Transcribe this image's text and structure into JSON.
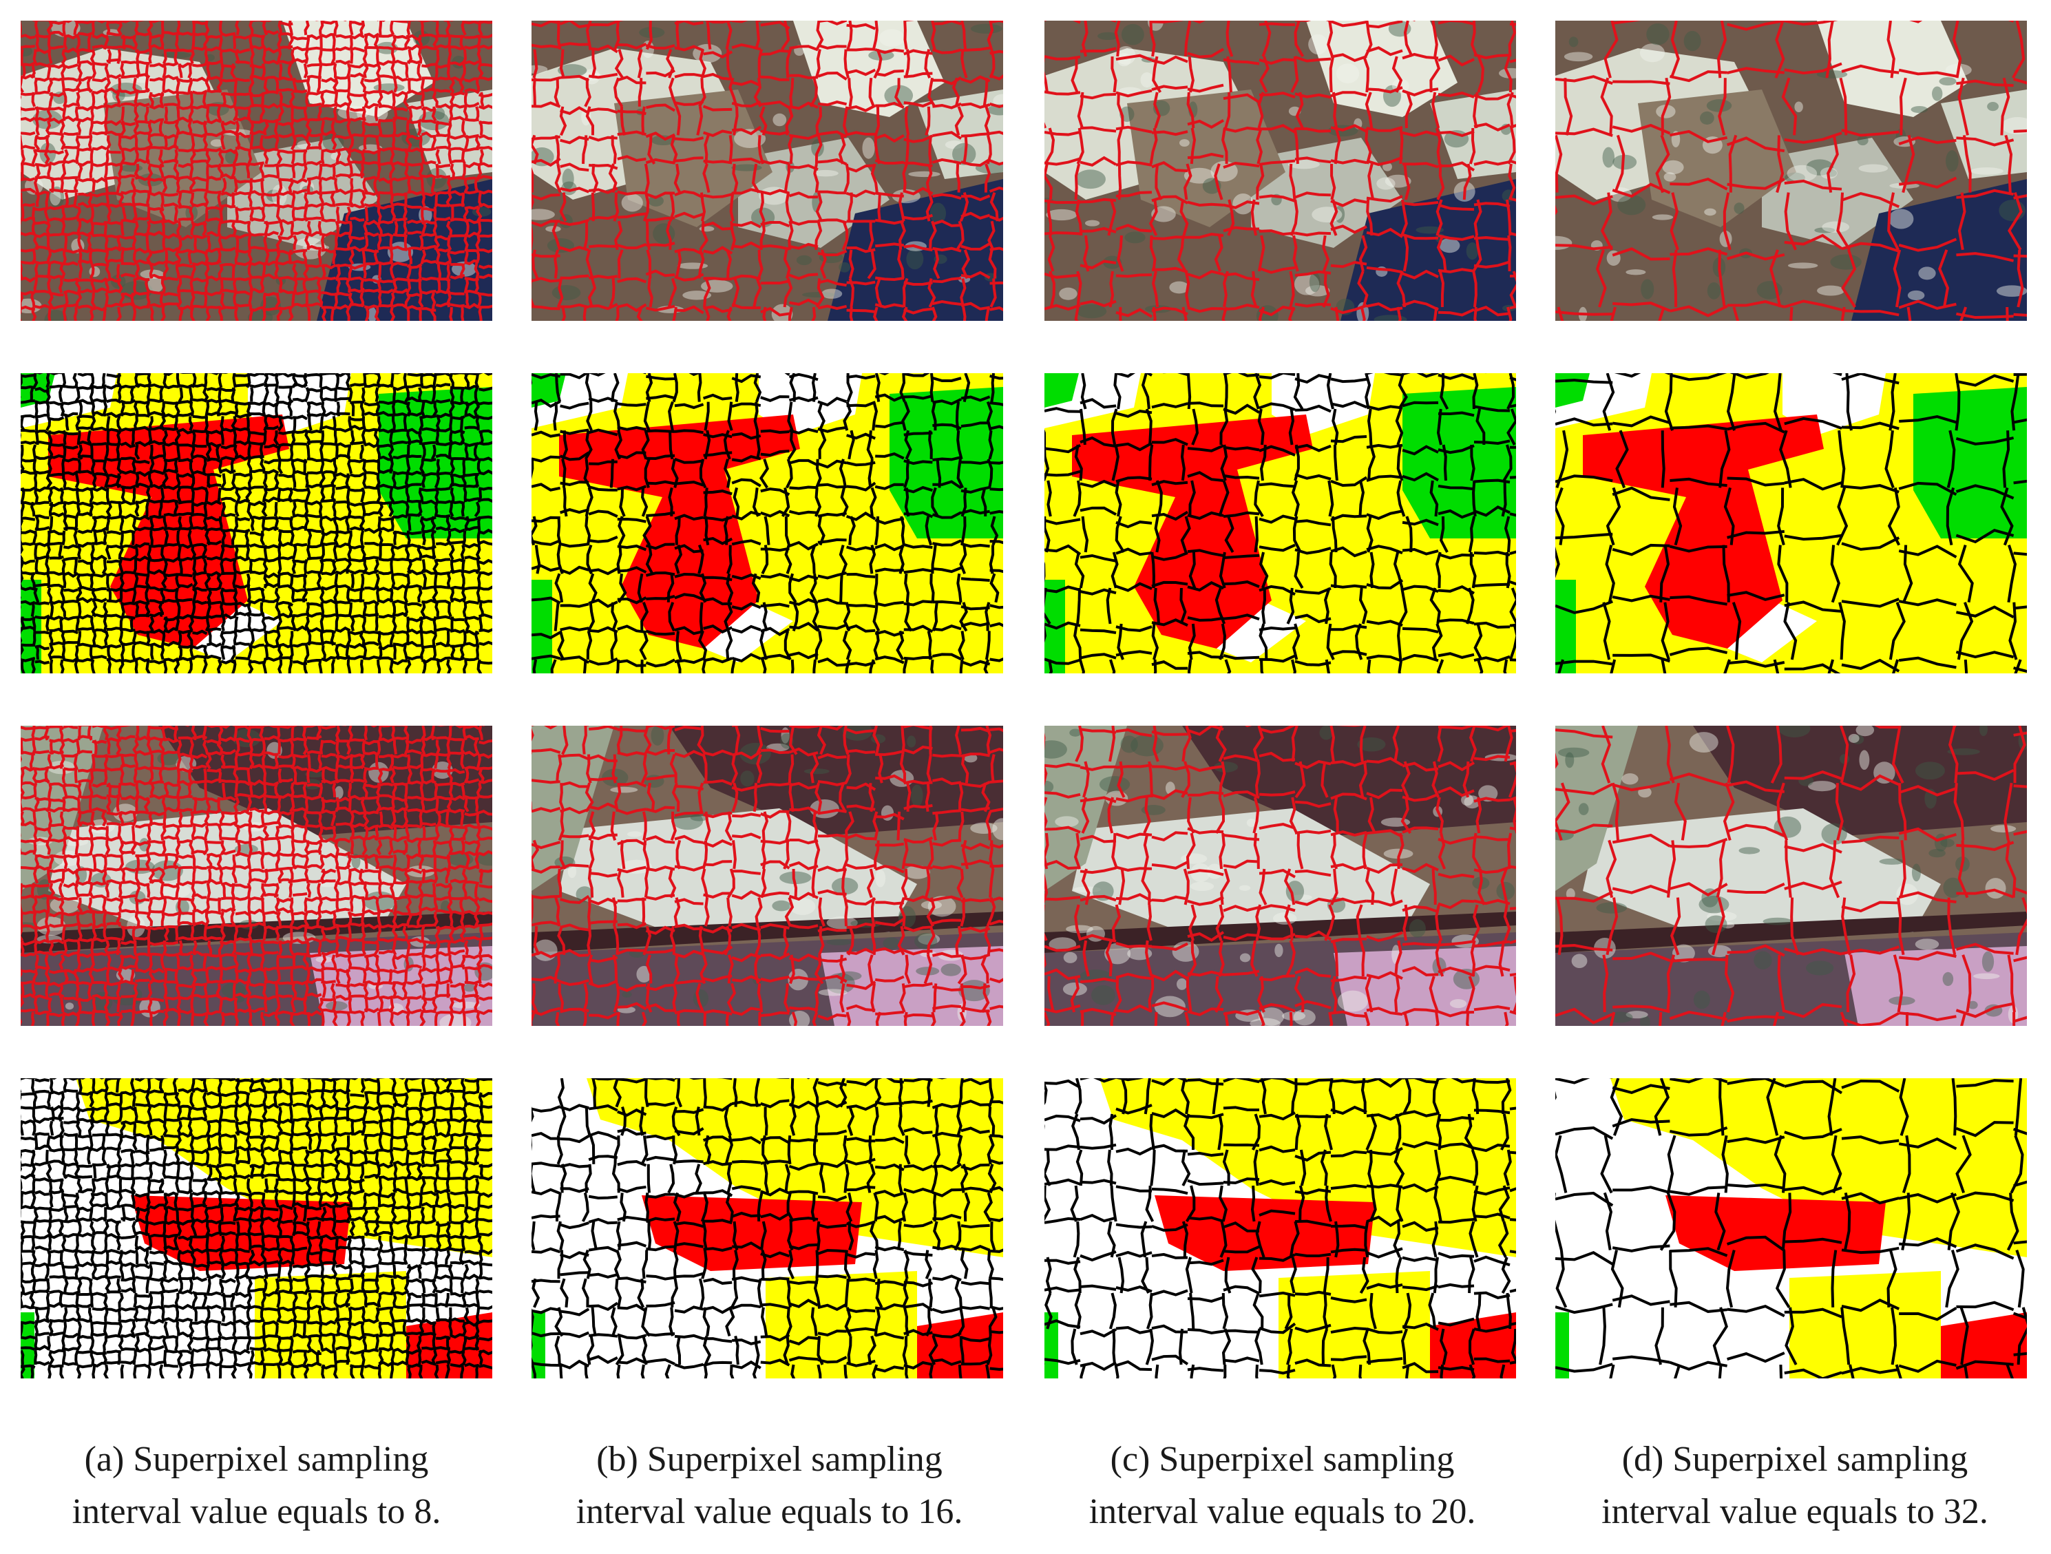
{
  "figure": {
    "rows": [
      {
        "kind": "image-superpixel",
        "line_color": "#e0121b"
      },
      {
        "kind": "classification-map",
        "line_color": "#000000"
      },
      {
        "kind": "image-superpixel",
        "line_color": "#e0121b"
      },
      {
        "kind": "classification-map",
        "line_color": "#000000"
      }
    ],
    "columns": [
      {
        "caption_line1": "(a) Superpixel sampling",
        "caption_line2": "interval value equals to 8.",
        "interval": 8
      },
      {
        "caption_line1": "(b) Superpixel sampling",
        "caption_line2": "interval value equals to 16.",
        "interval": 16
      },
      {
        "caption_line1": "(c) Superpixel sampling",
        "caption_line2": "interval value equals to 20.",
        "interval": 20
      },
      {
        "caption_line1": "(d) Superpixel sampling",
        "caption_line2": "interval value equals to 32.",
        "interval": 32
      }
    ],
    "class_colors": {
      "red": "#ff0000",
      "yellow": "#ffff00",
      "green": "#00dd00",
      "white": "#ffffff"
    }
  }
}
